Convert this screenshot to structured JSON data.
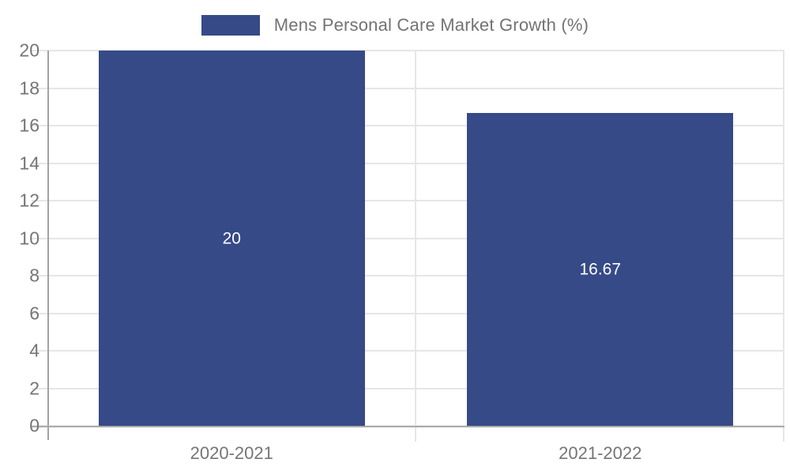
{
  "chart_data": {
    "type": "bar",
    "title": "",
    "categories": [
      "2020-2021",
      "2021-2022"
    ],
    "series": [
      {
        "name": "Mens Personal Care Market Growth (%)",
        "values": [
          20,
          16.67
        ]
      }
    ],
    "value_labels": [
      "20",
      "16.67"
    ],
    "ylabel": "",
    "xlabel": "",
    "ylim": [
      0,
      20
    ],
    "yticks": [
      0,
      2,
      4,
      6,
      8,
      10,
      12,
      14,
      16,
      18,
      20
    ],
    "grid": true,
    "legend_position": "top",
    "colors": {
      "bar": "#364a87",
      "grid": "#e6e6e6",
      "axis": "#a3a3a3",
      "tick_text": "#757575",
      "legend_text": "#737373",
      "value_text": "#ffffff",
      "background": "#ffffff"
    }
  },
  "legend": {
    "label": "Mens Personal Care Market Growth (%)"
  }
}
